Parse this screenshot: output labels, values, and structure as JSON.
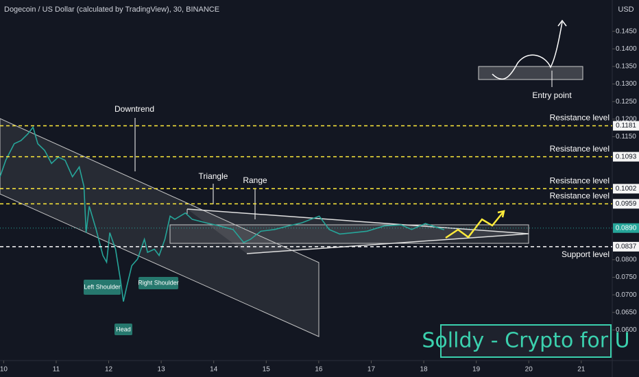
{
  "chart_data": {
    "type": "line",
    "title": "Dogecoin / US Dollar (calculated by TradingView), 30, BINANCE",
    "currency": "USD",
    "x": [
      9.93,
      10.04,
      10.2,
      10.33,
      10.46,
      10.56,
      10.65,
      10.78,
      10.91,
      11.04,
      11.17,
      11.31,
      11.44,
      11.53,
      11.57,
      11.63,
      11.76,
      11.89,
      11.96,
      12.02,
      12.13,
      12.22,
      12.28,
      12.35,
      12.44,
      12.55,
      12.68,
      12.74,
      12.87,
      12.96,
      13.07,
      13.17,
      13.26,
      13.46,
      13.59,
      13.85,
      14.11,
      14.37,
      14.57,
      14.7,
      14.9,
      15.16,
      15.42,
      15.68,
      16.01,
      16.2,
      16.4,
      16.66,
      16.92,
      17.25,
      17.57,
      17.77,
      18.03,
      18.29,
      18.39
    ],
    "series": [
      {
        "name": "DOGEUSD",
        "color": "#26a69a",
        "values": [
          0.1036,
          0.1083,
          0.113,
          0.1139,
          0.1158,
          0.1177,
          0.113,
          0.1111,
          0.1074,
          0.1092,
          0.1083,
          0.1036,
          0.1064,
          0.1008,
          0.0877,
          0.0952,
          0.0886,
          0.0812,
          0.0793,
          0.0877,
          0.083,
          0.0746,
          0.0681,
          0.0727,
          0.0783,
          0.0802,
          0.0858,
          0.0821,
          0.083,
          0.0812,
          0.0858,
          0.0924,
          0.0915,
          0.0933,
          0.0915,
          0.0905,
          0.0896,
          0.0886,
          0.0849,
          0.0858,
          0.0881,
          0.0886,
          0.0896,
          0.0905,
          0.0924,
          0.0886,
          0.0873,
          0.0877,
          0.0881,
          0.0896,
          0.0899,
          0.0886,
          0.0903,
          0.089,
          0.0885
        ]
      }
    ],
    "xlim": [
      9.93,
      21.59
    ],
    "ylim": [
      0.0513,
      0.1539
    ],
    "xticks": [
      10,
      11,
      12,
      13,
      14,
      15,
      16,
      17,
      18,
      19,
      20,
      21
    ],
    "yticks": [
      {
        "value": 0.145,
        "label": "0.1450"
      },
      {
        "value": 0.14,
        "label": "0.1400"
      },
      {
        "value": 0.135,
        "label": "0.1350"
      },
      {
        "value": 0.13,
        "label": "0.1300"
      },
      {
        "value": 0.125,
        "label": "0.1250"
      },
      {
        "value": 0.12,
        "label": "0.1200"
      },
      {
        "value": 0.115,
        "label": "0.1150"
      },
      {
        "value": 0.08,
        "label": "0.0800"
      },
      {
        "value": 0.075,
        "label": "0.0750"
      },
      {
        "value": 0.07,
        "label": "0.0700"
      },
      {
        "value": 0.065,
        "label": "0.0650"
      },
      {
        "value": 0.06,
        "label": "0.0600"
      }
    ],
    "levels": [
      {
        "name": "Resistance level",
        "value": 0.1181,
        "label": "0.1181",
        "color": "#ffeb3b"
      },
      {
        "name": "Resistance level",
        "value": 0.1093,
        "label": "0.1093",
        "color": "#ffeb3b"
      },
      {
        "name": "Resistance level",
        "value": 0.1002,
        "label": "0.1002",
        "color": "#ffeb3b"
      },
      {
        "name": "Resistance level",
        "value": 0.0959,
        "label": "0.0959",
        "color": "#ffeb3b"
      },
      {
        "name": "Support level",
        "value": 0.0837,
        "label": "0.0837",
        "color": "#ffffff"
      }
    ],
    "last_price": {
      "value": 0.089,
      "label": "0.0890",
      "color": "#26a69a"
    },
    "annotations": {
      "downtrend": "Downtrend",
      "triangle": "Triangle",
      "range": "Range",
      "left_shoulder": "Left Shoulder",
      "head": "Head",
      "right_shoulder": "Right Shoulder",
      "entry": "Entry point",
      "brand": "Solldy - Crypto for U"
    }
  }
}
